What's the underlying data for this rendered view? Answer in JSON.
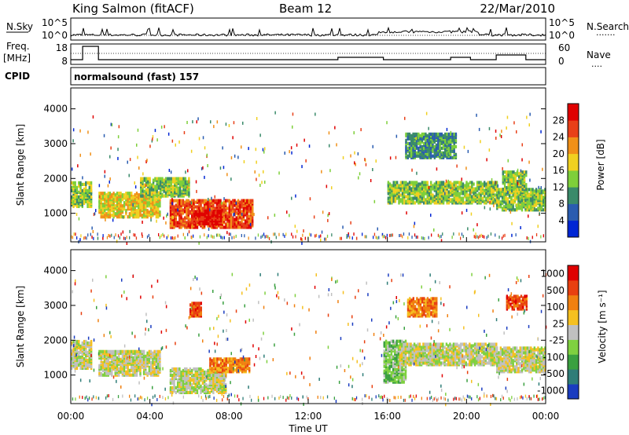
{
  "header": {
    "station": "King Salmon (fitACF)",
    "beam": "Beam 12",
    "date": "22/Mar/2010"
  },
  "noise_panel": {
    "left_label": "N.Sky",
    "right_label": "N.Search",
    "right_label_marker": "·······",
    "ticks": [
      "10^5",
      "10^0"
    ]
  },
  "freq_panel": {
    "left_label_top": "Freq.",
    "left_label_bottom": "[MHz]",
    "left_ticks": [
      "18",
      "8"
    ],
    "right_label": "Nave",
    "right_label_marker": "····",
    "right_ticks": [
      "60",
      "0"
    ]
  },
  "cpid": {
    "label": "CPID",
    "program": "normalsound (fast) 157"
  },
  "chart_data": [
    {
      "type": "heatmap",
      "name": "power",
      "ylabel": "Slant Range [km]",
      "ylim": [
        180,
        4600
      ],
      "yticks": [
        "1000",
        "2000",
        "3000",
        "4000"
      ],
      "colorbar_label": "Power [dB]",
      "colorbar_ticks": [
        "4",
        "8",
        "12",
        "16",
        "20",
        "24",
        "28"
      ],
      "colors": [
        "#0026d4",
        "#2a5cb0",
        "#3a8a6a",
        "#7ecf3a",
        "#f0d020",
        "#f09018",
        "#e84018",
        "#e00000"
      ],
      "regions": [
        {
          "t0": 0.0,
          "t1": 1.0,
          "r0": 1200,
          "r1": 1900,
          "level": 3
        },
        {
          "t0": 1.4,
          "t1": 4.5,
          "r0": 900,
          "r1": 1600,
          "level": 4
        },
        {
          "t0": 3.5,
          "t1": 6.0,
          "r0": 1500,
          "r1": 2000,
          "level": 3
        },
        {
          "t0": 5.0,
          "t1": 9.2,
          "r0": 600,
          "r1": 1400,
          "level": 6
        },
        {
          "t0": 6.2,
          "t1": 7.6,
          "r0": 700,
          "r1": 1100,
          "level": 7
        },
        {
          "t0": 16.0,
          "t1": 21.5,
          "r0": 1300,
          "r1": 1900,
          "level": 3
        },
        {
          "t0": 16.9,
          "t1": 19.5,
          "r0": 2600,
          "r1": 3300,
          "level": 2
        },
        {
          "t0": 21.5,
          "t1": 24.0,
          "r0": 1100,
          "r1": 1700,
          "level": 3
        },
        {
          "t0": 21.8,
          "t1": 23.0,
          "r0": 1600,
          "r1": 2200,
          "level": 3
        }
      ]
    },
    {
      "type": "heatmap",
      "name": "velocity",
      "ylabel": "Slant Range [km]",
      "ylim": [
        180,
        4600
      ],
      "yticks": [
        "1000",
        "2000",
        "3000",
        "4000"
      ],
      "colorbar_label": "Velocity [m s⁻¹]",
      "colorbar_ticks": [
        "1000",
        "500",
        "100",
        "25",
        "-25",
        "-100",
        "-500",
        "-1000"
      ],
      "colors": [
        "#1a3cc0",
        "#2f7d78",
        "#3aa040",
        "#7fd040",
        "#c0c0c0",
        "#f5c020",
        "#f08010",
        "#e84010",
        "#e00000"
      ],
      "regions": [
        {
          "t0": 0.0,
          "t1": 1.0,
          "r0": 1200,
          "r1": 2000,
          "level": 4
        },
        {
          "t0": 1.4,
          "t1": 4.5,
          "r0": 1000,
          "r1": 1700,
          "level": 4
        },
        {
          "t0": 5.0,
          "t1": 7.8,
          "r0": 500,
          "r1": 1200,
          "level": 4
        },
        {
          "t0": 7.0,
          "t1": 9.0,
          "r0": 1100,
          "r1": 1500,
          "level": 6
        },
        {
          "t0": 6.0,
          "t1": 6.6,
          "r0": 2700,
          "r1": 3100,
          "level": 7
        },
        {
          "t0": 15.8,
          "t1": 16.9,
          "r0": 800,
          "r1": 2000,
          "level": 3
        },
        {
          "t0": 16.6,
          "t1": 21.5,
          "r0": 1300,
          "r1": 1900,
          "level": 4
        },
        {
          "t0": 17.0,
          "t1": 18.5,
          "r0": 2700,
          "r1": 3200,
          "level": 6
        },
        {
          "t0": 21.5,
          "t1": 24.0,
          "r0": 1100,
          "r1": 1800,
          "level": 4
        },
        {
          "t0": 22.0,
          "t1": 23.0,
          "r0": 2900,
          "r1": 3300,
          "level": 7
        }
      ]
    }
  ],
  "time_axis": {
    "label": "Time UT",
    "ticks": [
      "00:00",
      "04:00",
      "08:00",
      "12:00",
      "16:00",
      "20:00",
      "00:00"
    ]
  }
}
